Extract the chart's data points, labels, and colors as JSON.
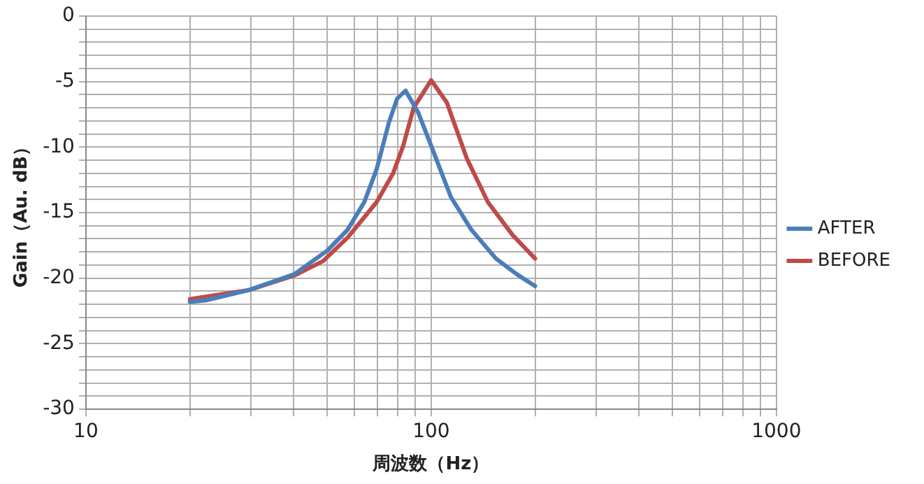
{
  "chart_data": {
    "type": "line",
    "xlabel": "周波数（Hz）",
    "ylabel": "Gain（Au. dB）",
    "log": "x",
    "xlim": [
      10,
      1000
    ],
    "ylim": [
      -30,
      0
    ],
    "xticks": [
      10,
      {
        "value": 20,
        "label": null
      },
      {
        "value": 30,
        "label": null
      },
      {
        "value": 40,
        "label": null
      },
      {
        "value": 50,
        "label": null
      },
      {
        "value": 60,
        "label": null
      },
      {
        "value": 70,
        "label": null
      },
      {
        "value": 80,
        "label": null
      },
      {
        "value": 90,
        "label": null
      },
      100,
      {
        "value": 200,
        "label": null
      },
      {
        "value": 300,
        "label": null
      },
      {
        "value": 400,
        "label": null
      },
      {
        "value": 500,
        "label": null
      },
      {
        "value": 600,
        "label": null
      },
      {
        "value": 700,
        "label": null
      },
      {
        "value": 800,
        "label": null
      },
      {
        "value": 900,
        "label": null
      },
      1000
    ],
    "yticks": [
      -30,
      {
        "value": -29,
        "label": null
      },
      {
        "value": -28,
        "label": null
      },
      {
        "value": -27,
        "label": null
      },
      {
        "value": -26,
        "label": null
      },
      -25,
      {
        "value": -24,
        "label": null
      },
      {
        "value": -23,
        "label": null
      },
      {
        "value": -22,
        "label": null
      },
      {
        "value": -21,
        "label": null
      },
      -20,
      {
        "value": -19,
        "label": null
      },
      {
        "value": -18,
        "label": null
      },
      {
        "value": -17,
        "label": null
      },
      {
        "value": -16,
        "label": null
      },
      -15,
      {
        "value": -14,
        "label": null
      },
      {
        "value": -13,
        "label": null
      },
      {
        "value": -12,
        "label": null
      },
      {
        "value": -11,
        "label": null
      },
      -10,
      {
        "value": -9,
        "label": null
      },
      {
        "value": -8,
        "label": null
      },
      {
        "value": -7,
        "label": null
      },
      {
        "value": -6,
        "label": null
      },
      -5,
      {
        "value": -4,
        "label": null
      },
      {
        "value": -3,
        "label": null
      },
      {
        "value": -2,
        "label": null
      },
      {
        "value": -1,
        "label": null
      },
      0
    ],
    "grid": true,
    "legend": "right",
    "marker": "none",
    "line_style": "solid",
    "series": [
      {
        "name": "AFTER",
        "color": "#4a7ebb",
        "x": [
          20,
          22.2,
          29.7,
          40.1,
          50,
          57.3,
          64,
          69.5,
          75.5,
          79.7,
          84.3,
          91.5,
          100,
          114,
          130.7,
          154,
          177,
          200
        ],
        "values": [
          -21.8,
          -21.7,
          -20.9,
          -19.7,
          -17.9,
          -16.3,
          -14.2,
          -11.7,
          -8.1,
          -6.3,
          -5.7,
          -7.3,
          -9.9,
          -13.8,
          -16.3,
          -18.5,
          -19.7,
          -20.6
        ]
      },
      {
        "name": "BEFORE",
        "color": "#be4b48",
        "x": [
          20,
          29.7,
          40.1,
          48.6,
          57.3,
          69.5,
          77.6,
          83,
          89,
          100,
          111,
          127,
          146,
          172,
          200
        ],
        "values": [
          -21.6,
          -20.9,
          -19.8,
          -18.7,
          -16.9,
          -14.2,
          -12,
          -9.9,
          -7,
          -4.9,
          -6.6,
          -10.9,
          -14.2,
          -16.7,
          -18.5
        ]
      }
    ]
  }
}
